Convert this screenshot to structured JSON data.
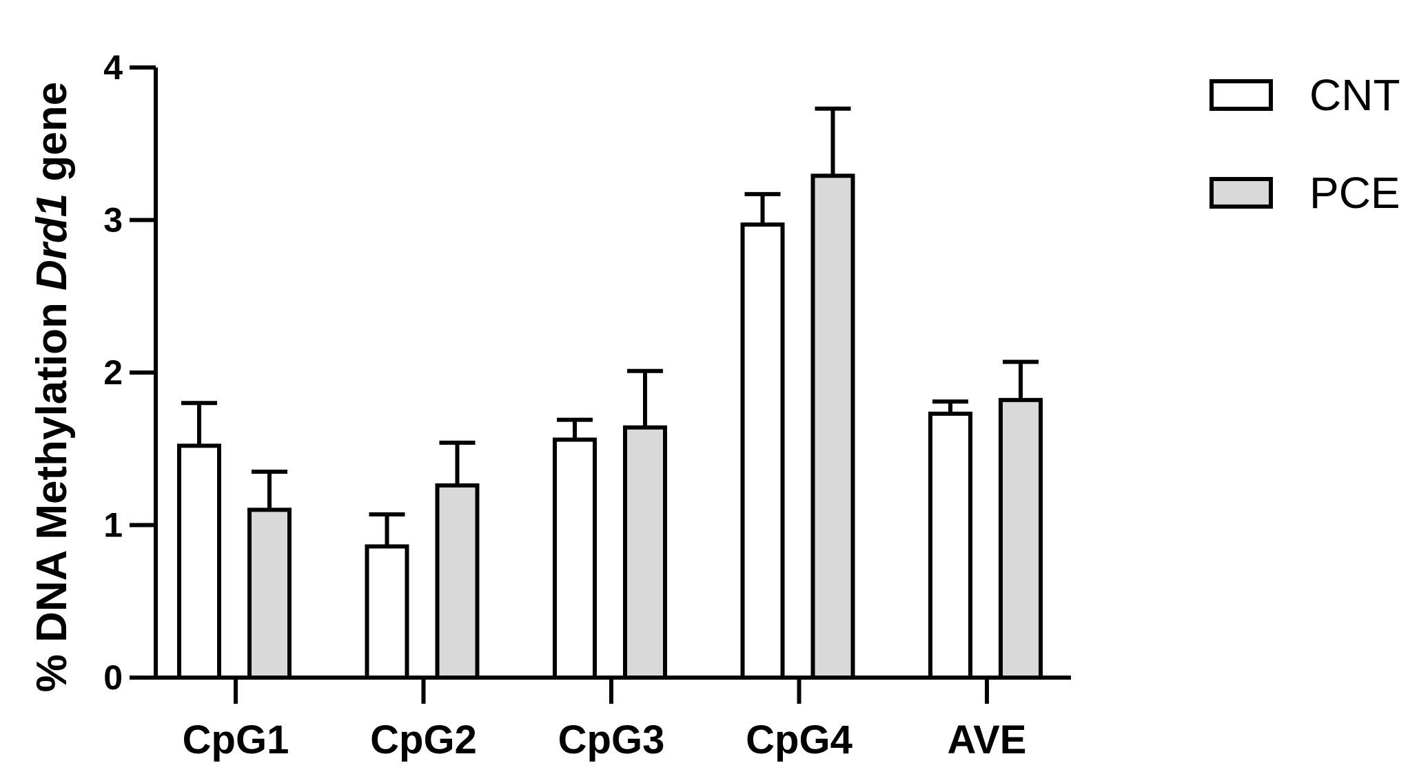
{
  "chart_data": {
    "type": "bar",
    "categories": [
      "CpG1",
      "CpG2",
      "CpG3",
      "CpG4",
      "AVE"
    ],
    "series": [
      {
        "name": "CNT",
        "values": [
          1.52,
          0.86,
          1.56,
          2.97,
          1.73
        ],
        "errors": [
          0.28,
          0.21,
          0.13,
          0.2,
          0.08
        ],
        "color": "#ffffff"
      },
      {
        "name": "PCE",
        "values": [
          1.1,
          1.26,
          1.64,
          3.29,
          1.82
        ],
        "errors": [
          0.25,
          0.28,
          0.37,
          0.44,
          0.25
        ],
        "color": "#d9d9d9"
      }
    ],
    "ylabel_prefix": "% DNA Methylation ",
    "ylabel_italic": "Drd1",
    "ylabel_suffix": " gene",
    "xlabel": "",
    "ylim": [
      0,
      4
    ],
    "yticks": [
      "0",
      "1",
      "2",
      "3",
      "4"
    ],
    "legend_position": "top-right",
    "grid": false
  }
}
